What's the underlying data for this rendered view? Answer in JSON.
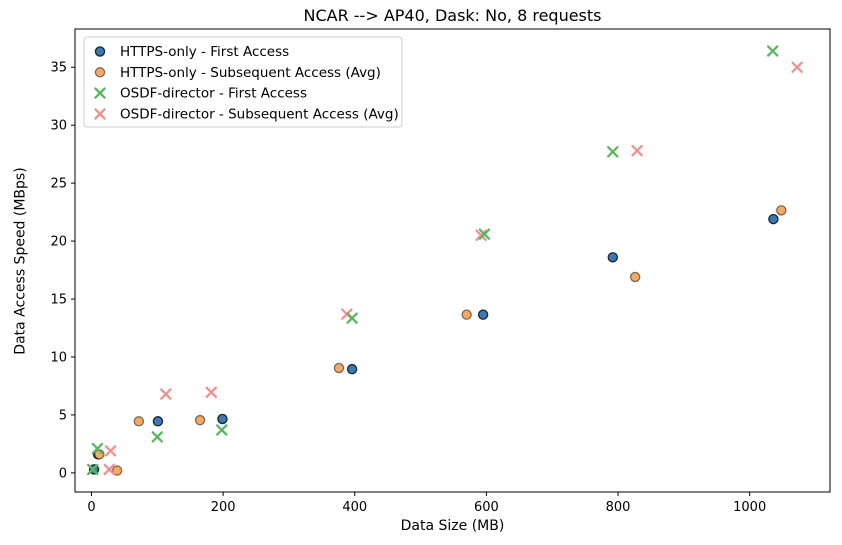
{
  "figure": {
    "title": "NCAR --> AP40, Dask: No, 8 requests",
    "xlabel": "Data Size (MB)",
    "ylabel": "Data Access Speed (MBps)"
  },
  "chart_data": {
    "type": "scatter",
    "title": "NCAR --> AP40, Dask: No, 8 requests",
    "xlabel": "Data Size (MB)",
    "ylabel": "Data Access Speed (MBps)",
    "xlim": [
      -25,
      1122
    ],
    "ylim": [
      -1.65,
      38.3
    ],
    "xticks": [
      0,
      200,
      400,
      600,
      800,
      1000
    ],
    "yticks": [
      0,
      5,
      10,
      15,
      20,
      25,
      30,
      35
    ],
    "grid": false,
    "legend": {
      "position": "upper-left",
      "border_color": "#cccccc",
      "background": "#ffffff"
    },
    "series": [
      {
        "name": "HTTPS-only - First Access",
        "marker": "circle",
        "color": "#3a79b1",
        "edge_color": "rgba(0,0,0,0.8)",
        "points": [
          [
            4,
            0.3
          ],
          [
            10,
            1.6
          ],
          [
            101,
            4.45
          ],
          [
            199,
            4.65
          ],
          [
            396,
            8.95
          ],
          [
            595,
            13.65
          ],
          [
            792,
            18.6
          ],
          [
            1036,
            21.9
          ]
        ]
      },
      {
        "name": "HTTPS-only - Subsequent Access (Avg)",
        "marker": "circle",
        "color": "#f5a962",
        "edge_color": "rgba(0,0,0,0.5)",
        "points": [
          [
            39,
            0.2
          ],
          [
            12,
            1.6
          ],
          [
            72,
            4.45
          ],
          [
            165,
            4.55
          ],
          [
            376,
            9.05
          ],
          [
            570,
            13.65
          ],
          [
            826,
            16.9
          ],
          [
            1048,
            22.65
          ]
        ]
      },
      {
        "name": "OSDF-director - First Access",
        "marker": "x",
        "color": "#5bb75f",
        "edge_color": "#5bb75f",
        "points": [
          [
            2,
            0.3
          ],
          [
            9,
            2.1
          ],
          [
            100,
            3.1
          ],
          [
            198,
            3.7
          ],
          [
            396,
            13.35
          ],
          [
            597,
            20.6
          ],
          [
            792,
            27.7
          ],
          [
            1035,
            36.4
          ]
        ]
      },
      {
        "name": "OSDF-director - Subsequent Access (Avg)",
        "marker": "x",
        "color": "#ee9190",
        "edge_color": "#ee9190",
        "points": [
          [
            27,
            0.3
          ],
          [
            29,
            1.9
          ],
          [
            113,
            6.8
          ],
          [
            182,
            6.95
          ],
          [
            388,
            13.7
          ],
          [
            592,
            20.5
          ],
          [
            829,
            27.8
          ],
          [
            1072,
            35.0
          ]
        ]
      }
    ],
    "draw_order": [
      0,
      1,
      3,
      2
    ]
  }
}
